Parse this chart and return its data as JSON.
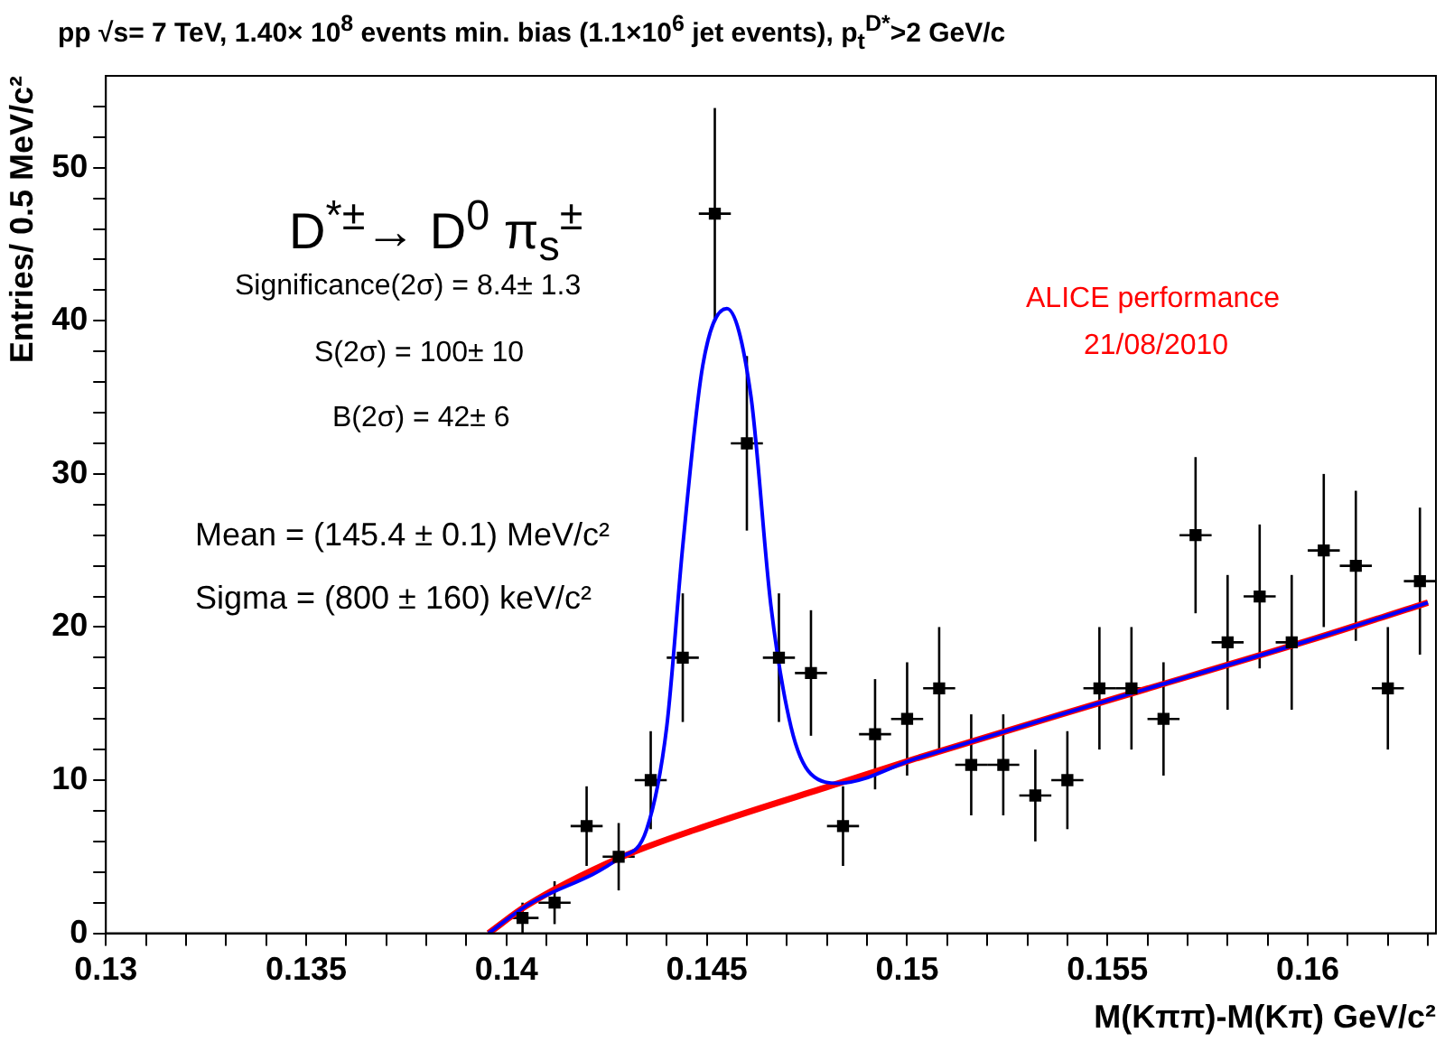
{
  "chart_data": {
    "type": "scatter",
    "title": "pp √s= 7 TeV, 1.40× 10$^{8}$ events min. bias (1.1×10$^{6}$ jet events), p$_{t}$$^{D*}$>2 GeV/c",
    "xlabel": "M(Kππ)-M(Kπ) GeV/c²",
    "ylabel": "Entries/ 0.5 MeV/c²",
    "xlim": [
      0.13,
      0.1632
    ],
    "ylim": [
      0,
      56
    ],
    "xticks": [
      0.13,
      {
        "value": 0.131,
        "label": null
      },
      {
        "value": 0.132,
        "label": null
      },
      {
        "value": 0.133,
        "label": null
      },
      {
        "value": 0.134,
        "label": null
      },
      0.135,
      {
        "value": 0.136,
        "label": null
      },
      {
        "value": 0.137,
        "label": null
      },
      {
        "value": 0.138,
        "label": null
      },
      {
        "value": 0.139,
        "label": null
      },
      0.14,
      {
        "value": 0.141,
        "label": null
      },
      {
        "value": 0.142,
        "label": null
      },
      {
        "value": 0.143,
        "label": null
      },
      {
        "value": 0.144,
        "label": null
      },
      0.145,
      {
        "value": 0.146,
        "label": null
      },
      {
        "value": 0.147,
        "label": null
      },
      {
        "value": 0.148,
        "label": null
      },
      {
        "value": 0.149,
        "label": null
      },
      0.15,
      {
        "value": 0.151,
        "label": null
      },
      {
        "value": 0.152,
        "label": null
      },
      {
        "value": 0.153,
        "label": null
      },
      {
        "value": 0.154,
        "label": null
      },
      0.155,
      {
        "value": 0.156,
        "label": null
      },
      {
        "value": 0.157,
        "label": null
      },
      {
        "value": 0.158,
        "label": null
      },
      {
        "value": 0.159,
        "label": null
      },
      0.16,
      {
        "value": 0.161,
        "label": null
      },
      {
        "value": 0.162,
        "label": null
      },
      {
        "value": 0.163,
        "label": null
      }
    ],
    "yticks": [
      0,
      {
        "value": 2,
        "label": null
      },
      {
        "value": 4,
        "label": null
      },
      {
        "value": 6,
        "label": null
      },
      {
        "value": 8,
        "label": null
      },
      10,
      {
        "value": 12,
        "label": null
      },
      {
        "value": 14,
        "label": null
      },
      {
        "value": 16,
        "label": null
      },
      {
        "value": 18,
        "label": null
      },
      20,
      {
        "value": 22,
        "label": null
      },
      {
        "value": 24,
        "label": null
      },
      {
        "value": 26,
        "label": null
      },
      {
        "value": 28,
        "label": null
      },
      30,
      {
        "value": 32,
        "label": null
      },
      {
        "value": 34,
        "label": null
      },
      {
        "value": 36,
        "label": null
      },
      {
        "value": 38,
        "label": null
      },
      40,
      {
        "value": 42,
        "label": null
      },
      {
        "value": 44,
        "label": null
      },
      {
        "value": 46,
        "label": null
      },
      {
        "value": 48,
        "label": null
      },
      50,
      {
        "value": 52,
        "label": null
      },
      {
        "value": 54,
        "label": null
      }
    ],
    "grid": false,
    "legend": false,
    "series": [
      {
        "type": "scatter",
        "marker": "square",
        "color": "#000000",
        "x": [
          0.1404,
          0.1412,
          0.142,
          0.1428,
          0.1436,
          0.1444,
          0.1452,
          0.146,
          0.1468,
          0.1476,
          0.1484,
          0.1492,
          0.15,
          0.1508,
          0.1516,
          0.1524,
          0.1532,
          0.154,
          0.1548,
          0.1556,
          0.1564,
          0.1572,
          0.158,
          0.1588,
          0.1596,
          0.1604,
          0.1612,
          0.162,
          0.1628
        ],
        "values": [
          1,
          2,
          7,
          5,
          10,
          18,
          47,
          32,
          18,
          17,
          7,
          13,
          14,
          16,
          11,
          11,
          9,
          10,
          16,
          16,
          14,
          26,
          19,
          22,
          19,
          25,
          24,
          16,
          23
        ],
        "errors": [
          1,
          1.4,
          2.6,
          2.2,
          3.2,
          4.2,
          6.9,
          5.7,
          4.2,
          4.1,
          2.6,
          3.6,
          3.7,
          4,
          3.3,
          3.3,
          3,
          3.2,
          4,
          4,
          3.7,
          5.1,
          4.4,
          4.7,
          4.4,
          5,
          4.9,
          4,
          4.8
        ],
        "xerrors": [
          0.0004,
          0.0004,
          0.0004,
          0.0004,
          0.0004,
          0.0004,
          0.0004,
          0.0004,
          0.0004,
          0.0004,
          0.0004,
          0.0004,
          0.0004,
          0.0004,
          0.0004,
          0.0004,
          0.0004,
          0.0004,
          0.0004,
          0.0004,
          0.0004,
          0.0004,
          0.0004,
          0.0004,
          0.0004,
          0.0004,
          0.0004,
          0.0004,
          0.0004
        ]
      },
      {
        "type": "line",
        "marker": "none",
        "color": "#ff0000",
        "x": [
          0.13955,
          0.1405,
          0.1428,
          0.1452,
          0.1483,
          0.1502,
          0.155,
          0.16,
          0.163
        ],
        "values": [
          0,
          1.8,
          4.9,
          7.2,
          9.8,
          11.4,
          15.2,
          19.1,
          21.6
        ]
      },
      {
        "type": "line",
        "marker": "none",
        "color": "#0000ff",
        "x": [
          0.13955,
          0.1405,
          0.1428,
          0.1435,
          0.144,
          0.1444,
          0.1449,
          0.1455,
          0.1461,
          0.1466,
          0.1471,
          0.1476,
          0.1483,
          0.1502,
          0.155,
          0.16,
          0.163
        ],
        "values": [
          0,
          1.8,
          4.9,
          6.8,
          13.5,
          25.3,
          37.1,
          40.8,
          35.1,
          21.4,
          13.5,
          10.4,
          9.8,
          11.4,
          15.2,
          19.1,
          21.6
        ]
      }
    ],
    "annotations": [
      "D$^{*±}$→ D$^{0}$ π$_{s}$$^{±}$",
      "Significance(2σ) = 8.4± 1.3",
      "S(2σ) = 100± 10",
      "B(2σ) = 42± 6",
      "Mean = (145.4 ± 0.1) MeV/c²",
      "Sigma = (800 ± 160) keV/c²",
      "ALICE performance",
      "21/08/2010"
    ]
  }
}
